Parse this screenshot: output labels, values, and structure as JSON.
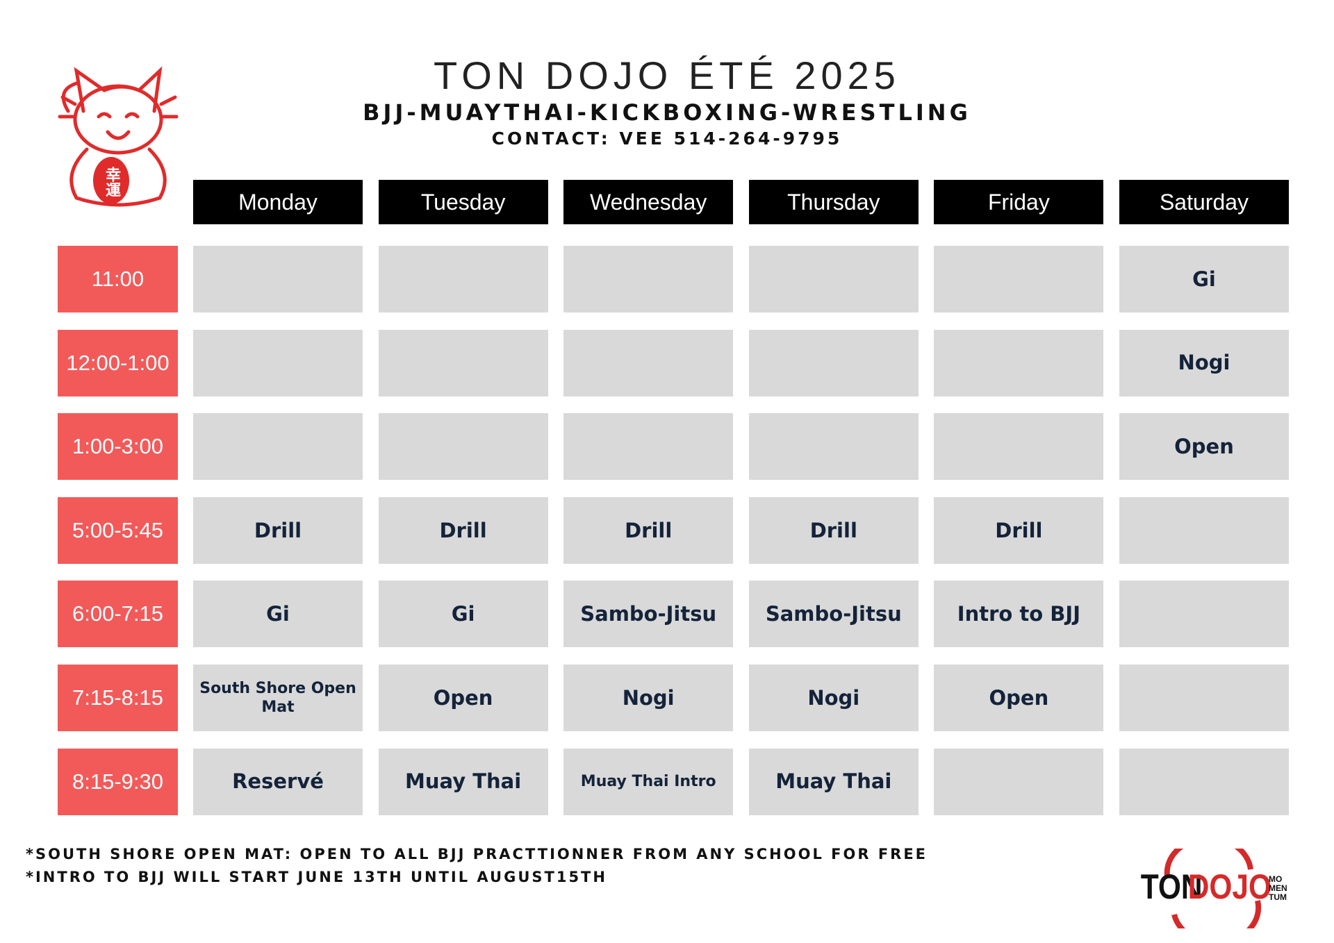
{
  "header": {
    "title": "TON DOJO ÉTÉ 2025",
    "subtitle": "BJJ-MUAYTHAI-KICKBOXING-WRESTLING",
    "contact": "CONTACT: VEE 514-264-9795"
  },
  "cat": {
    "charm": "幸運"
  },
  "schedule": {
    "days": [
      "Monday",
      "Tuesday",
      "Wednesday",
      "Thursday",
      "Friday",
      "Saturday"
    ],
    "rows": [
      {
        "time": "11:00",
        "cells": [
          null,
          null,
          null,
          null,
          null,
          "Gi"
        ]
      },
      {
        "time": "12:00-1:00",
        "cells": [
          null,
          null,
          null,
          null,
          null,
          "Nogi"
        ]
      },
      {
        "time": "1:00-3:00",
        "cells": [
          null,
          null,
          null,
          null,
          null,
          "Open"
        ]
      },
      {
        "time": "5:00-5:45",
        "cells": [
          "Drill",
          "Drill",
          "Drill",
          "Drill",
          "Drill",
          null
        ]
      },
      {
        "time": "6:00-7:15",
        "cells": [
          "Gi",
          "Gi",
          "Sambo-Jitsu",
          "Sambo-Jitsu",
          "Intro to BJJ",
          null
        ]
      },
      {
        "time": "7:15-8:15",
        "cells": [
          "South Shore Open Mat",
          "Open",
          "Nogi",
          "Nogi",
          "Open",
          null
        ]
      },
      {
        "time": "8:15-9:30",
        "cells": [
          "Reservé",
          "Muay Thai",
          "Muay Thai Intro",
          "Muay Thai",
          null,
          null
        ]
      }
    ]
  },
  "footnotes": [
    "*SOUTH SHORE OPEN MAT: OPEN TO ALL BJJ PRACTTIONNER FROM ANY SCHOOL FOR FREE",
    "*INTRO TO BJJ WILL START JUNE 13TH UNTIL AUGUST15TH"
  ],
  "logo": {
    "ton": "TON",
    "dojo": "DOJO",
    "mo": "MO",
    "men": "MEN",
    "tum": "TUM"
  }
}
